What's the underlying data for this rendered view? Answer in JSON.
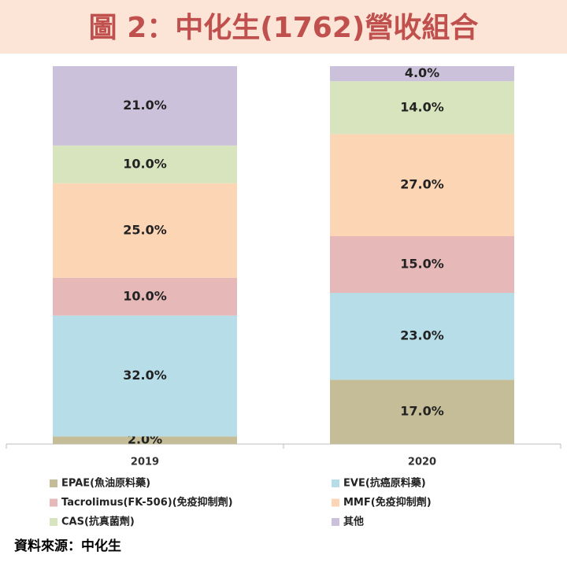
{
  "chart_data": {
    "type": "stacked_bar",
    "title": "圖 2：中化生(1762)營收組合",
    "categories": [
      "2019",
      "2020"
    ],
    "ylim": [
      0,
      100
    ],
    "legend": "bottom",
    "series": [
      {
        "name": "EPAE(魚油原料藥)",
        "color": "#c4bd97",
        "values": [
          2,
          17
        ],
        "value_labels": [
          "2.0%",
          "17.0%"
        ]
      },
      {
        "name": "EVE(抗癌原料藥)",
        "color": "#b7dde8",
        "values": [
          32,
          23
        ],
        "value_labels": [
          "32.0%",
          "23.0%"
        ]
      },
      {
        "name": "Tacrolimus(FK-506)(免疫抑制劑)",
        "color": "#e6b9b8",
        "values": [
          10,
          15
        ],
        "value_labels": [
          "10.0%",
          "15.0%"
        ]
      },
      {
        "name": "MMF(免疫抑制劑)",
        "color": "#fcd5b5",
        "values": [
          25,
          27
        ],
        "value_labels": [
          "25.0%",
          "27.0%"
        ]
      },
      {
        "name": "CAS(抗真菌劑)",
        "color": "#d7e4bd",
        "values": [
          10,
          14
        ],
        "value_labels": [
          "10.0%",
          "14.0%"
        ]
      },
      {
        "name": "其他",
        "color": "#ccc1da",
        "values": [
          21,
          4
        ],
        "value_labels": [
          "21.0%",
          "4.0%"
        ]
      }
    ],
    "source": "資料來源：中化生"
  }
}
